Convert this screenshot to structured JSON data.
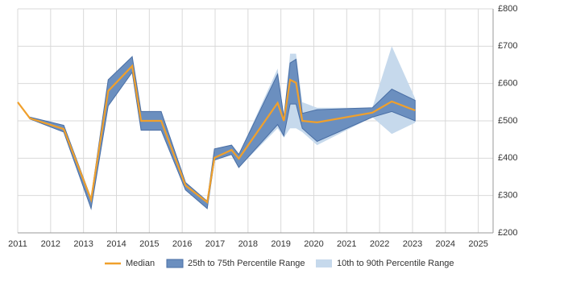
{
  "chart_data": {
    "type": "line",
    "x": [
      2011,
      2011.37,
      2012.4,
      2013.23,
      2013.75,
      2014.48,
      2014.75,
      2015.36,
      2016.1,
      2016.76,
      2016.98,
      2017.5,
      2017.72,
      2018.9,
      2019.09,
      2019.28,
      2019.46,
      2019.65,
      2020.1,
      2021.78,
      2022.37,
      2023.08
    ],
    "series": [
      {
        "name": "Median",
        "color": "#f0a02c",
        "values": [
          550,
          507,
          478,
          289,
          580,
          647,
          500,
          500,
          327,
          282,
          401,
          422,
          399,
          548,
          500,
          610,
          602,
          500,
          496,
          522,
          552,
          528
        ]
      },
      {
        "name": "25th to 75th Percentile Range",
        "color": "#6b8fbf",
        "low": [
          null,
          505,
          470,
          265,
          540,
          630,
          475,
          475,
          315,
          265,
          395,
          410,
          375,
          490,
          460,
          545,
          545,
          480,
          445,
          510,
          525,
          500
        ],
        "high": [
          null,
          510,
          488,
          292,
          610,
          672,
          525,
          525,
          335,
          285,
          425,
          435,
          410,
          625,
          510,
          655,
          665,
          520,
          530,
          535,
          585,
          555
        ]
      },
      {
        "name": "10th to 90th Percentile Range",
        "color": "#c6d9ec",
        "low": [
          null,
          505,
          470,
          265,
          540,
          630,
          475,
          475,
          315,
          265,
          395,
          410,
          375,
          480,
          455,
          480,
          480,
          470,
          435,
          510,
          465,
          495
        ],
        "high": [
          null,
          510,
          488,
          292,
          610,
          672,
          525,
          525,
          335,
          285,
          425,
          435,
          410,
          640,
          515,
          680,
          680,
          550,
          535,
          535,
          700,
          560
        ]
      }
    ],
    "xlim": [
      2011,
      2025.45
    ],
    "xticks": [
      2011,
      2012,
      2013,
      2014,
      2015,
      2016,
      2017,
      2018,
      2019,
      2020,
      2021,
      2022,
      2023,
      2024,
      2025
    ],
    "ylim": [
      200,
      800
    ],
    "yticks": [
      {
        "value": 200,
        "label": "£200"
      },
      {
        "value": 300,
        "label": "£300"
      },
      {
        "value": 400,
        "label": "£400"
      },
      {
        "value": 500,
        "label": "£500"
      },
      {
        "value": 600,
        "label": "£600"
      },
      {
        "value": 700,
        "label": "£700"
      },
      {
        "value": 800,
        "label": "£800"
      }
    ],
    "grid": true
  }
}
